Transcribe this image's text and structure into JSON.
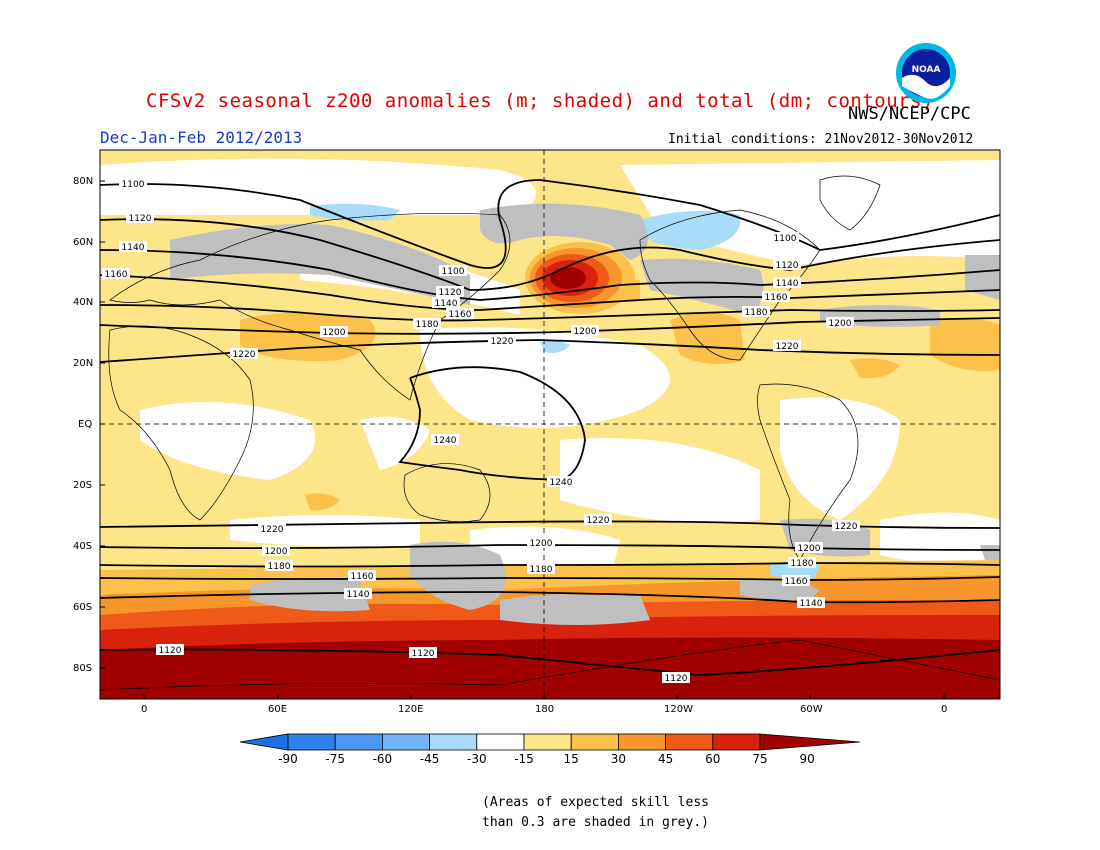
{
  "header": {
    "title": "CFSv2 seasonal z200 anomalies (m; shaded) and total (dm; contours)",
    "agency": "NWS/NCEP/CPC",
    "season": "Dec-Jan-Feb 2012/2013",
    "initial_conditions": "Initial conditions: 21Nov2012-30Nov2012",
    "logo_text": "NOAA"
  },
  "map": {
    "lat_ticks": [
      "80N",
      "60N",
      "40N",
      "20N",
      "EQ",
      "20S",
      "40S",
      "60S",
      "80S"
    ],
    "lon_ticks": [
      "0",
      "60E",
      "120E",
      "180",
      "120W",
      "60W",
      "0"
    ],
    "contour_labels": [
      {
        "id": "c1100a",
        "text": "1100"
      },
      {
        "id": "c1120a",
        "text": "1120"
      },
      {
        "id": "c1140a",
        "text": "1140"
      },
      {
        "id": "c1160a",
        "text": "1160"
      },
      {
        "id": "c1100b",
        "text": "1100"
      },
      {
        "id": "c1120b",
        "text": "1120"
      },
      {
        "id": "c1140b",
        "text": "1140"
      },
      {
        "id": "c1160b",
        "text": "1160"
      },
      {
        "id": "c1180a",
        "text": "1180"
      },
      {
        "id": "c1100c",
        "text": "1100"
      },
      {
        "id": "c1120c",
        "text": "1120"
      },
      {
        "id": "c1140c",
        "text": "1140"
      },
      {
        "id": "c1160c",
        "text": "1160"
      },
      {
        "id": "c1180b",
        "text": "1180"
      },
      {
        "id": "c1200a",
        "text": "1200"
      },
      {
        "id": "c1200b",
        "text": "1200"
      },
      {
        "id": "c1200c",
        "text": "1200"
      },
      {
        "id": "c1220a",
        "text": "1220"
      },
      {
        "id": "c1220b",
        "text": "1220"
      },
      {
        "id": "c1220c",
        "text": "1220"
      },
      {
        "id": "c1240a",
        "text": "1240"
      },
      {
        "id": "c1240b",
        "text": "1240"
      },
      {
        "id": "c1220d",
        "text": "1220"
      },
      {
        "id": "c1220e",
        "text": "1220"
      },
      {
        "id": "c1220f",
        "text": "1220"
      },
      {
        "id": "c1200d",
        "text": "1200"
      },
      {
        "id": "c1200e",
        "text": "1200"
      },
      {
        "id": "c1200f",
        "text": "1200"
      },
      {
        "id": "c1180c",
        "text": "1180"
      },
      {
        "id": "c1180d",
        "text": "1180"
      },
      {
        "id": "c1180e",
        "text": "1180"
      },
      {
        "id": "c1160d",
        "text": "1160"
      },
      {
        "id": "c1160e",
        "text": "1160"
      },
      {
        "id": "c1140d",
        "text": "1140"
      },
      {
        "id": "c1140e",
        "text": "1140"
      },
      {
        "id": "c1120d",
        "text": "1120"
      },
      {
        "id": "c1120e",
        "text": "1120"
      },
      {
        "id": "c1120f",
        "text": "1120"
      }
    ]
  },
  "colorbar": {
    "labels": [
      "-90",
      "-75",
      "-60",
      "-45",
      "-30",
      "-15",
      "15",
      "30",
      "45",
      "60",
      "75",
      "90"
    ],
    "colors": [
      "#1e6ee6",
      "#2e82f0",
      "#4a98f4",
      "#72b4f6",
      "#a8dcf8",
      "#ffffff",
      "#fde68a",
      "#fbc14a",
      "#f7962c",
      "#f05a18",
      "#d8220c",
      "#a00000"
    ]
  },
  "note": {
    "line1": "(Areas of expected skill less",
    "line2": "than 0.3 are shaded in grey.)"
  }
}
